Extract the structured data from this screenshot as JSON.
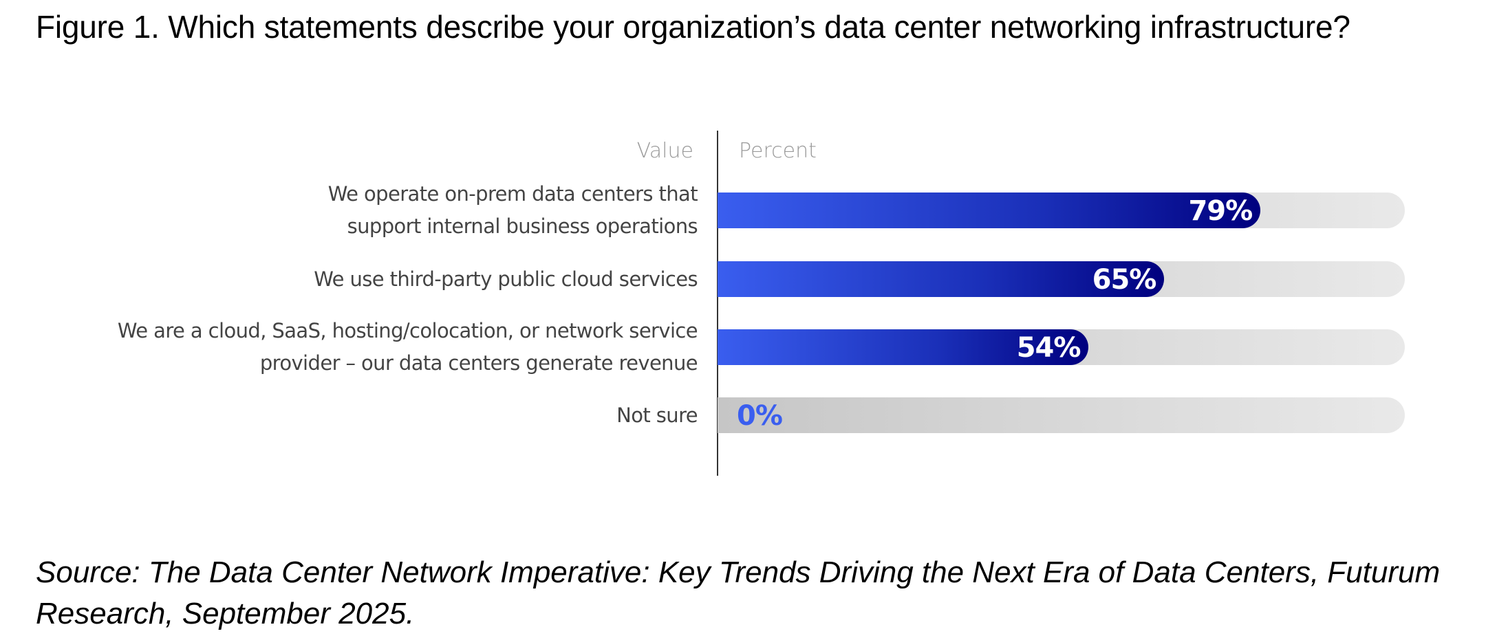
{
  "figure": {
    "title": "Figure 1. Which statements describe your organization’s data center networking infrastructure?",
    "source_line1": "Source: The Data Center Network Imperative: Key Trends Driving the Next Era of Data Centers, Futurum",
    "source_line2": "Research, September 2025."
  },
  "colors": {
    "bar_gradient_start": "#3a5eef",
    "bar_gradient_end": "#00007e",
    "track_start": "#c6c6c6",
    "track_end": "#e9e9e9",
    "zero_label": "#3a5eef"
  },
  "chart_data": {
    "type": "bar",
    "orientation": "horizontal",
    "title": "Figure 1. Which statements describe your organization’s data center networking infrastructure?",
    "column_headers": {
      "category": "Value",
      "value": "Percent"
    },
    "categories": [
      [
        "We operate on-prem data centers that",
        "support internal business operations"
      ],
      [
        "We use third-party public cloud services"
      ],
      [
        "We are a cloud, SaaS, hosting/colocation, or network service",
        "provider – our data centers generate revenue"
      ],
      [
        "Not sure"
      ]
    ],
    "values": [
      79,
      65,
      54,
      0
    ],
    "value_labels": [
      "79%",
      "65%",
      "54%",
      "0%"
    ],
    "xlim": [
      0,
      100
    ],
    "unit": "%",
    "grid": false,
    "legend": "none"
  }
}
